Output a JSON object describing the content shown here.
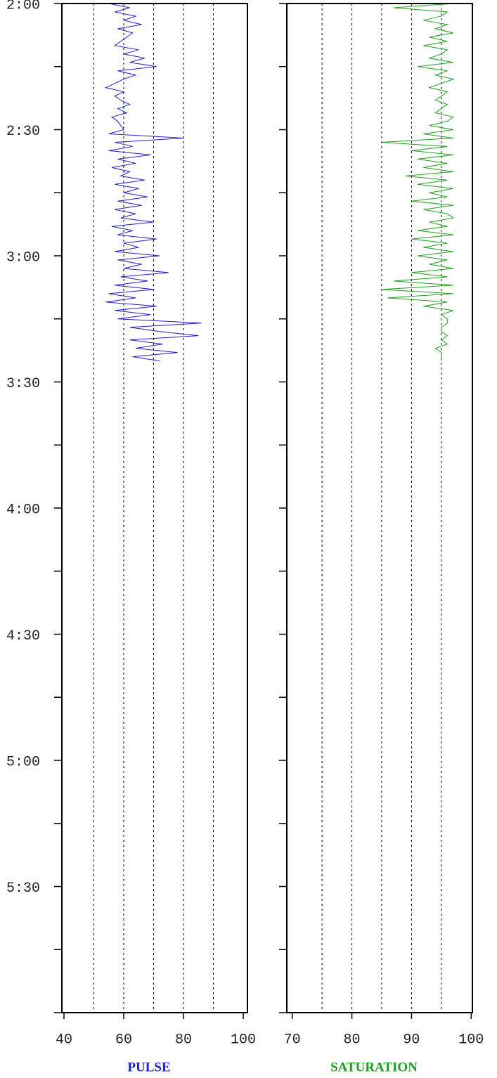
{
  "chart_data": [
    {
      "type": "line",
      "xlabel": "PULSE",
      "y": [
        120,
        121,
        122,
        123,
        124,
        125,
        126,
        127,
        128,
        129,
        130,
        131,
        132,
        133,
        134,
        135,
        136,
        137,
        138,
        139,
        140,
        141,
        142,
        143,
        144,
        145,
        146,
        147,
        148,
        149,
        150,
        151,
        152,
        153,
        154,
        155,
        156,
        157,
        158,
        159,
        160,
        161,
        162,
        163,
        164,
        165,
        166,
        167,
        168,
        169,
        170,
        171,
        172,
        173,
        174,
        175,
        176,
        177,
        178,
        179,
        180,
        181,
        182,
        183,
        184,
        185,
        186,
        187,
        188,
        189,
        190,
        191,
        192,
        193,
        194,
        195,
        196,
        197,
        198,
        199,
        200,
        201,
        202,
        203,
        204,
        205
      ],
      "series": [
        {
          "color": "#1f1fc8",
          "values": [
            55,
            62,
            57,
            64,
            60,
            66,
            58,
            63,
            61,
            59,
            57,
            65,
            60,
            67,
            62,
            71,
            58,
            64,
            60,
            57,
            54,
            60,
            57,
            59,
            62,
            58,
            61,
            56,
            58,
            59,
            60,
            55,
            80,
            57,
            63,
            55,
            69,
            58,
            64,
            56,
            62,
            59,
            67,
            57,
            65,
            60,
            68,
            58,
            66,
            57,
            64,
            59,
            70,
            56,
            63,
            58,
            71,
            60,
            65,
            57,
            72,
            58,
            66,
            60,
            75,
            59,
            68,
            57,
            70,
            55,
            64,
            54,
            71,
            57,
            69,
            58,
            86,
            62,
            72,
            85,
            62,
            73,
            64,
            78,
            63,
            72
          ]
        }
      ],
      "ylim": [
        120,
        360
      ],
      "yticks": [
        {
          "value": 120,
          "label": "2:00"
        },
        {
          "value": 150,
          "label": "2:30"
        },
        {
          "value": 180,
          "label": "3:00"
        },
        {
          "value": 210,
          "label": "3:30"
        },
        {
          "value": 240,
          "label": "4:00"
        },
        {
          "value": 270,
          "label": "4:30"
        },
        {
          "value": 300,
          "label": "5:00"
        },
        {
          "value": 330,
          "label": "5:30"
        }
      ],
      "y_tick_marks": [
        120,
        135,
        150,
        165,
        180,
        195,
        210,
        225,
        240,
        255,
        270,
        285,
        300,
        315,
        330,
        345,
        360
      ],
      "xlim": [
        39.3,
        101.4
      ],
      "xticks": [
        40,
        60,
        80,
        100
      ],
      "xgrid": [
        50,
        60,
        70,
        80,
        90
      ]
    },
    {
      "type": "line",
      "xlabel": "SATURATION",
      "y": [
        120,
        121,
        122,
        123,
        124,
        125,
        126,
        127,
        128,
        129,
        130,
        131,
        132,
        133,
        134,
        135,
        136,
        137,
        138,
        139,
        140,
        141,
        142,
        143,
        144,
        145,
        146,
        147,
        148,
        149,
        150,
        151,
        152,
        153,
        154,
        155,
        156,
        157,
        158,
        159,
        160,
        161,
        162,
        163,
        164,
        165,
        166,
        167,
        168,
        169,
        170,
        171,
        172,
        173,
        174,
        175,
        176,
        177,
        178,
        179,
        180,
        181,
        182,
        183,
        184,
        185,
        186,
        187,
        188,
        189,
        190,
        191,
        192,
        193,
        194,
        195,
        196,
        197,
        198,
        199,
        200,
        201,
        202,
        203,
        204,
        205
      ],
      "series": [
        {
          "color": "#1f9f1f",
          "values": [
            97,
            87,
            96,
            95,
            92,
            96,
            94,
            97,
            93,
            96,
            92,
            96,
            95,
            93,
            97,
            91,
            96,
            94,
            97,
            95,
            93,
            96,
            95,
            94,
            96,
            95,
            94,
            97,
            96,
            93,
            97,
            92,
            97,
            85,
            96,
            90,
            97,
            91,
            96,
            92,
            97,
            89,
            96,
            91,
            97,
            93,
            96,
            90,
            97,
            92,
            96,
            97,
            93,
            96,
            91,
            97,
            90,
            96,
            92,
            97,
            91,
            96,
            93,
            97,
            90,
            96,
            87,
            97,
            85,
            97,
            86,
            96,
            92,
            97,
            95,
            96,
            96,
            95,
            95,
            96,
            95,
            96,
            94,
            95,
            95,
            95
          ]
        }
      ],
      "ylim": [
        120,
        360
      ],
      "y_tick_marks": [
        120,
        135,
        150,
        165,
        180,
        195,
        210,
        225,
        240,
        255,
        270,
        285,
        300,
        315,
        330,
        345,
        360
      ],
      "xlim": [
        69.1,
        100.2
      ],
      "xticks": [
        70,
        80,
        90,
        100
      ],
      "xgrid": [
        75,
        80,
        85,
        90,
        95
      ]
    }
  ]
}
